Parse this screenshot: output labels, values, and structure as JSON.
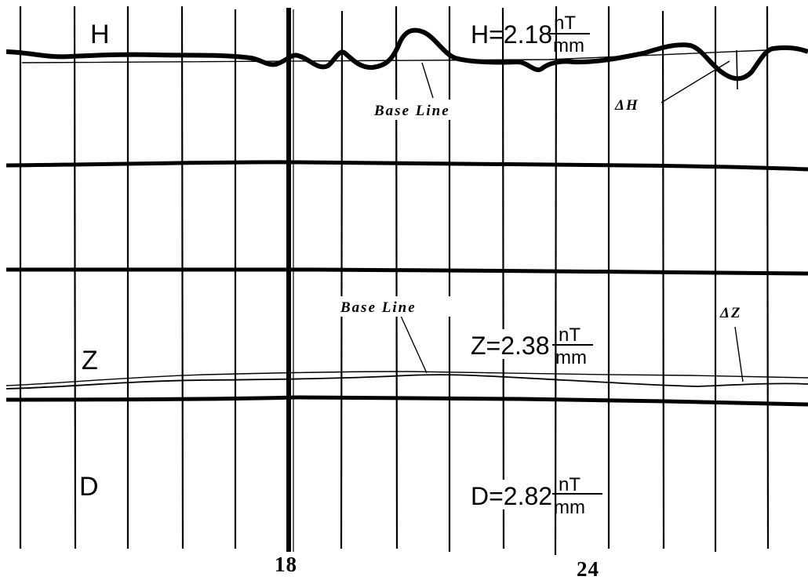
{
  "chart_data": {
    "type": "line",
    "title": "",
    "xlabel": "",
    "x_tick_labels": [
      "18",
      "24"
    ],
    "grid": true,
    "traces": [
      {
        "channel": "H",
        "scale_text": "H=2.18",
        "unit_numerator": "nT",
        "unit_denominator": "mm",
        "baseline_label": "Base Line",
        "delta_label": "ΔH"
      },
      {
        "channel": "Z",
        "scale_text": "Z=2.38",
        "unit_numerator": "nT",
        "unit_denominator": "mm",
        "baseline_label": "Base Line",
        "delta_label": "ΔZ"
      },
      {
        "channel": "D",
        "scale_text": "D=2.82",
        "unit_numerator": "nT",
        "unit_denominator": "mm"
      }
    ]
  }
}
